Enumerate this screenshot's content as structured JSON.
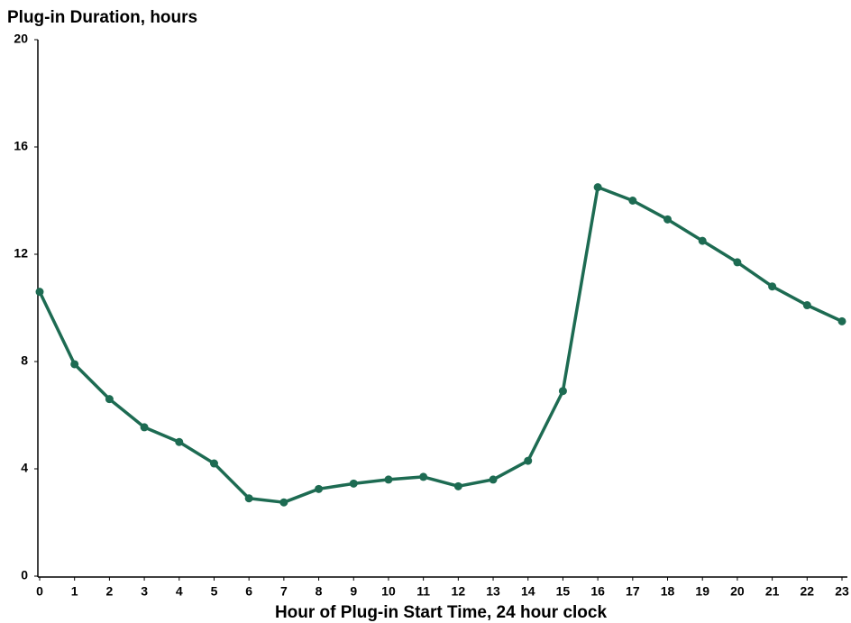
{
  "chart_data": {
    "type": "line",
    "title": "Plug-in Duration, hours",
    "xlabel": "Hour of Plug-in Start Time, 24 hour clock",
    "x": [
      0,
      1,
      2,
      3,
      4,
      5,
      6,
      7,
      8,
      9,
      10,
      11,
      12,
      13,
      14,
      15,
      16,
      17,
      18,
      19,
      20,
      21,
      22,
      23
    ],
    "series": [
      {
        "name": "Plug-in Duration",
        "color": "#1d6b52",
        "values": [
          10.6,
          7.9,
          6.6,
          5.55,
          5.0,
          4.2,
          2.9,
          2.75,
          3.25,
          3.45,
          3.6,
          3.7,
          3.35,
          3.6,
          4.3,
          6.9,
          14.5,
          14.0,
          13.3,
          12.5,
          11.7,
          10.8,
          10.1,
          9.5
        ]
      }
    ],
    "xlim": [
      0,
      23
    ],
    "xticks": [
      0,
      1,
      2,
      3,
      4,
      5,
      6,
      7,
      8,
      9,
      10,
      11,
      12,
      13,
      14,
      15,
      16,
      17,
      18,
      19,
      20,
      21,
      22,
      23
    ],
    "ylim": [
      0,
      20
    ],
    "yticks": [
      0,
      4,
      8,
      12,
      16,
      20
    ],
    "grid": false,
    "legend": false
  }
}
